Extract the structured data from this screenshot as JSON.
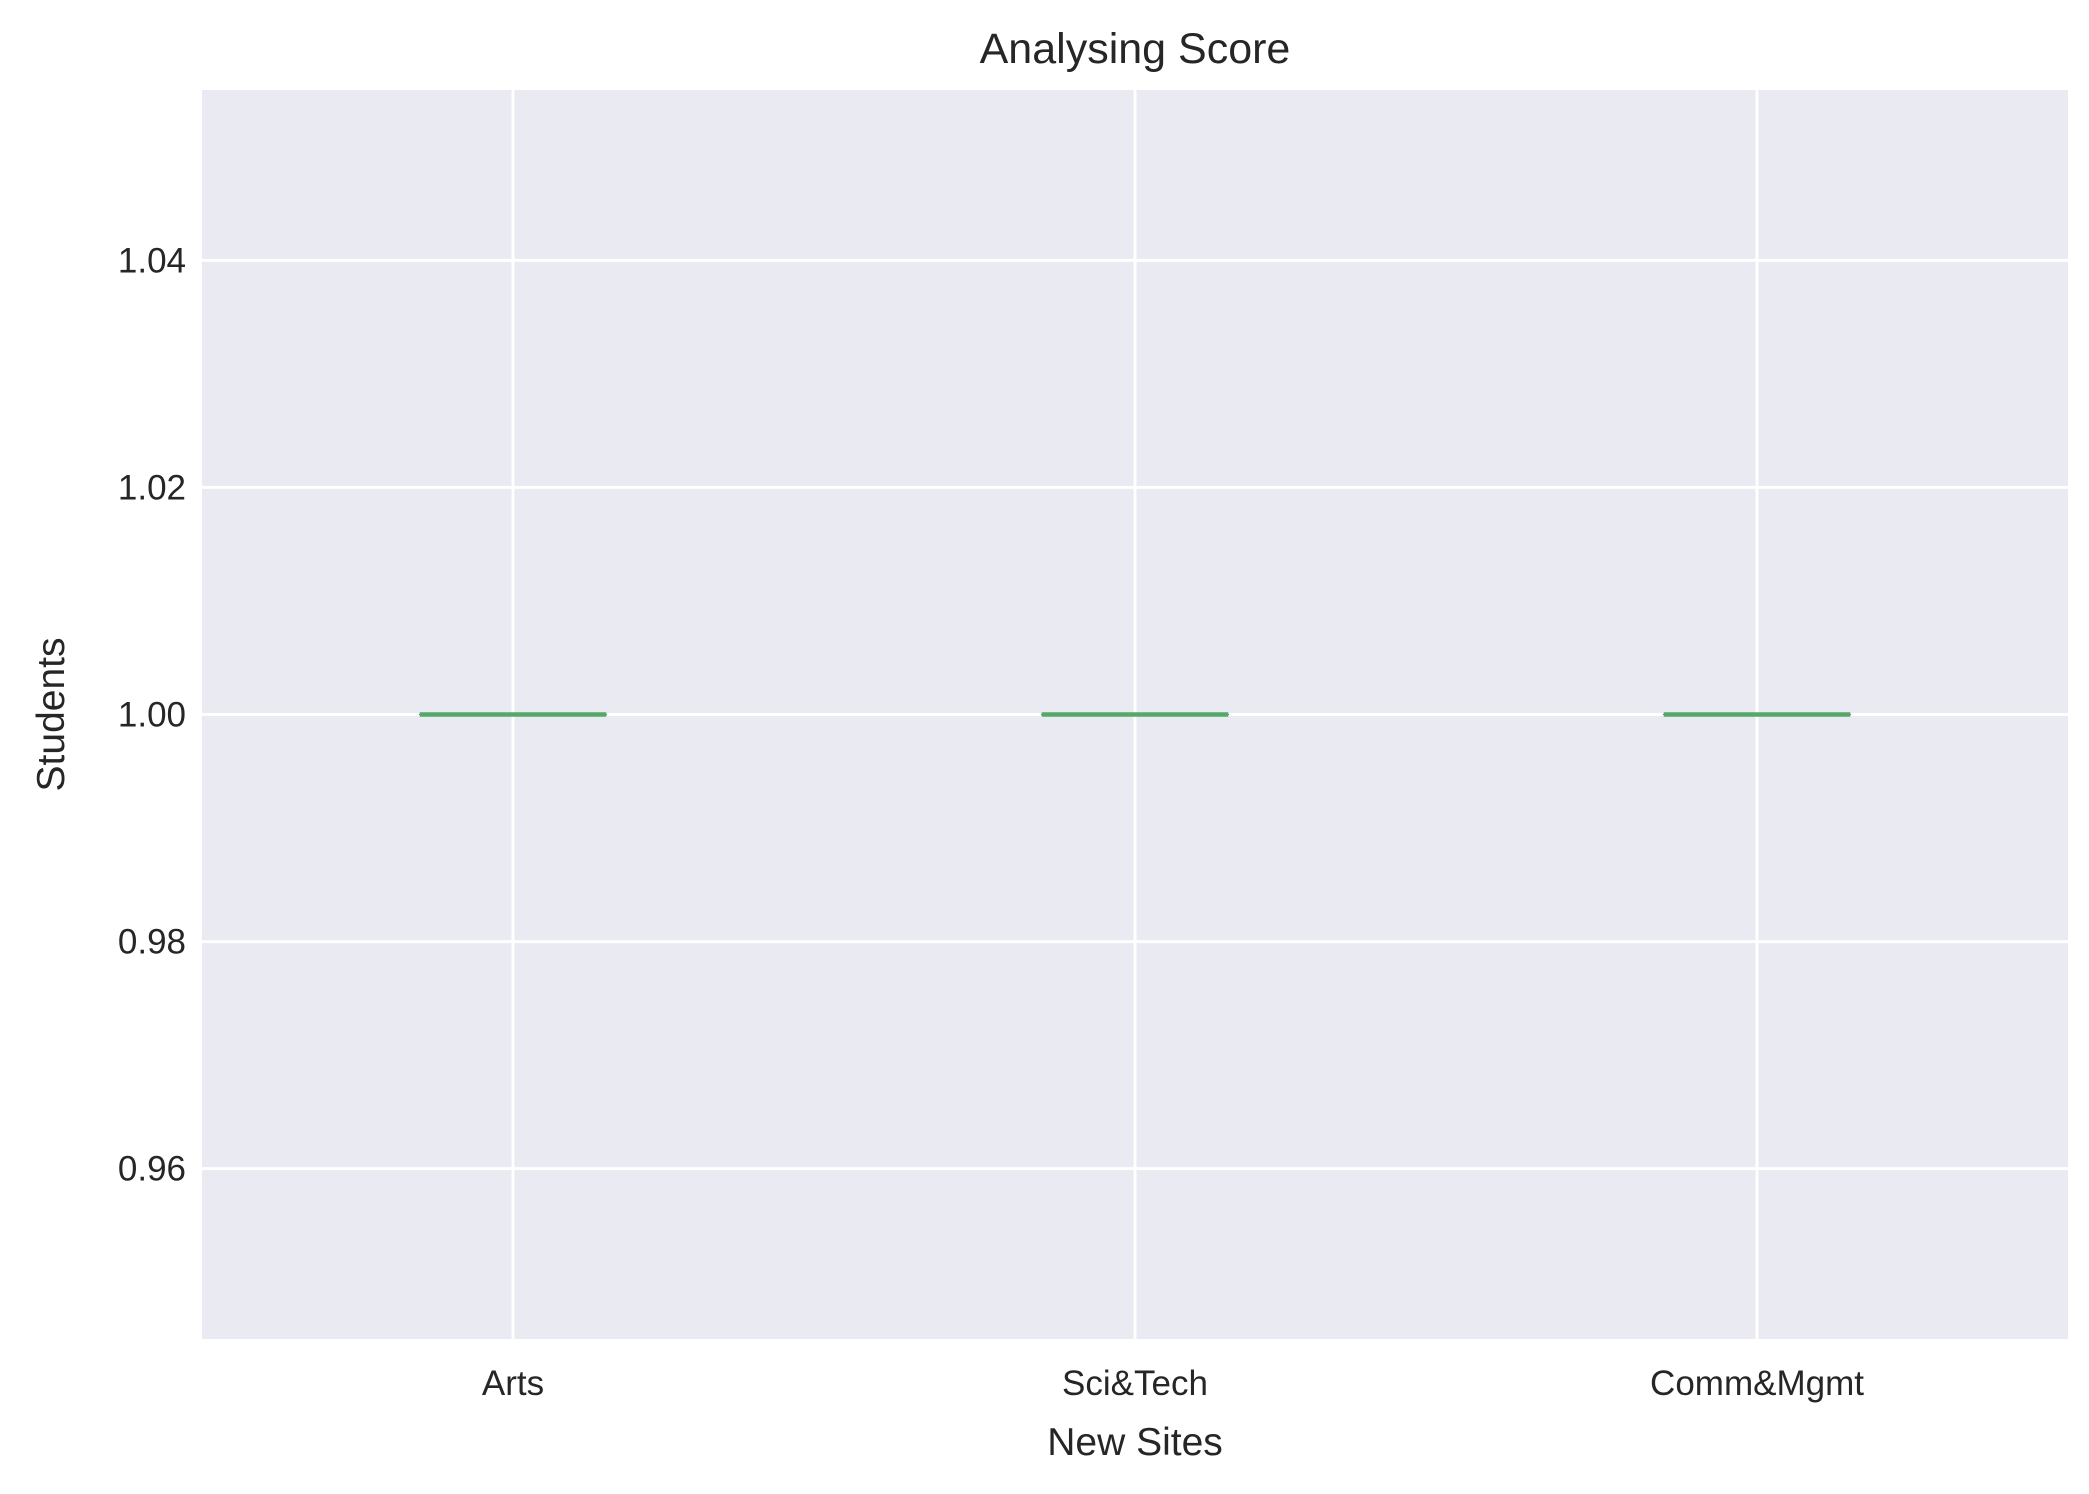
{
  "chart_data": {
    "type": "box",
    "title": "Analysing Score",
    "xlabel": "New Sites",
    "ylabel": "Students",
    "categories": [
      "Arts",
      "Sci&Tech",
      "Comm&Mgmt"
    ],
    "series": [
      {
        "category": "Arts",
        "min": 1.0,
        "q1": 1.0,
        "median": 1.0,
        "q3": 1.0,
        "max": 1.0
      },
      {
        "category": "Sci&Tech",
        "min": 1.0,
        "q1": 1.0,
        "median": 1.0,
        "q3": 1.0,
        "max": 1.0
      },
      {
        "category": "Comm&Mgmt",
        "min": 1.0,
        "q1": 1.0,
        "median": 1.0,
        "q3": 1.0,
        "max": 1.0
      }
    ],
    "ylim": [
      0.945,
      1.055
    ],
    "yticks": [
      0.96,
      0.98,
      1.0,
      1.02,
      1.04
    ],
    "ytick_labels": [
      "0.96",
      "0.98",
      "1.00",
      "1.02",
      "1.04"
    ],
    "grid": true,
    "colors": {
      "plot_background": "#EAEAF2",
      "grid": "#FFFFFF",
      "median_line": "#55A868",
      "text": "#262626"
    }
  }
}
